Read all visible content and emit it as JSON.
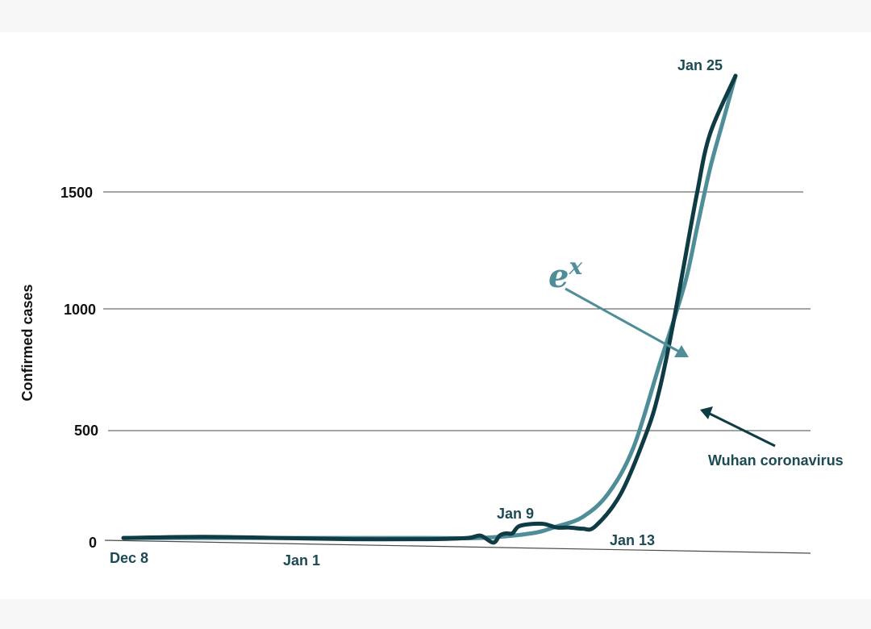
{
  "chart_data": {
    "type": "line",
    "title": "",
    "xlabel": "",
    "ylabel": "Confirmed cases",
    "ylim": [
      0,
      2000
    ],
    "y_ticks": [
      0,
      500,
      1000,
      1500
    ],
    "grid": true,
    "x_range": [
      "Dec 8",
      "Jan 25"
    ],
    "annotations": {
      "dec8": "Dec 8",
      "jan1": "Jan 1",
      "jan9": "Jan 9",
      "jan13": "Jan 13",
      "jan25": "Jan 25"
    },
    "series": [
      {
        "name": "Wuhan coronavirus",
        "color": "#0f3b45",
        "points": [
          [
            "Dec 8",
            10
          ],
          [
            "Dec 14",
            15
          ],
          [
            "Dec 20",
            10
          ],
          [
            "Dec 26",
            5
          ],
          [
            "Jan 1",
            5
          ],
          [
            "Jan 4",
            10
          ],
          [
            "Jan 5",
            20
          ],
          [
            "Jan 6",
            -10
          ],
          [
            "Jan 6.5",
            20
          ],
          [
            "Jan 7",
            30
          ],
          [
            "Jan 7.5",
            30
          ],
          [
            "Jan 8",
            60
          ],
          [
            "Jan 9",
            70
          ],
          [
            "Jan 10",
            70
          ],
          [
            "Jan 11",
            55
          ],
          [
            "Jan 12",
            55
          ],
          [
            "Jan 13",
            50
          ],
          [
            "Jan 14",
            60
          ],
          [
            "Jan 16",
            200
          ],
          [
            "Jan 18",
            460
          ],
          [
            "Jan 19",
            640
          ],
          [
            "Jan 20",
            900
          ],
          [
            "Jan 21",
            1200
          ],
          [
            "Jan 22",
            1500
          ],
          [
            "Jan 23",
            1750
          ],
          [
            "Jan 25",
            2000
          ]
        ]
      },
      {
        "name": "e^x",
        "color": "#4f8e99",
        "points": [
          [
            "Dec 8",
            10
          ],
          [
            "Dec 20",
            10
          ],
          [
            "Jan 1",
            10
          ],
          [
            "Jan 5",
            10
          ],
          [
            "Jan 9",
            30
          ],
          [
            "Jan 11",
            60
          ],
          [
            "Jan 13",
            100
          ],
          [
            "Jan 15",
            200
          ],
          [
            "Jan 17",
            400
          ],
          [
            "Jan 19",
            750
          ],
          [
            "Jan 21",
            1100
          ],
          [
            "Jan 22",
            1350
          ],
          [
            "Jan 23",
            1600
          ],
          [
            "Jan 24",
            1800
          ],
          [
            "Jan 25",
            2000
          ]
        ]
      }
    ],
    "series_labels": {
      "wuhan": "Wuhan coronavirus",
      "exp_base": "e",
      "exp_power": "x"
    }
  }
}
